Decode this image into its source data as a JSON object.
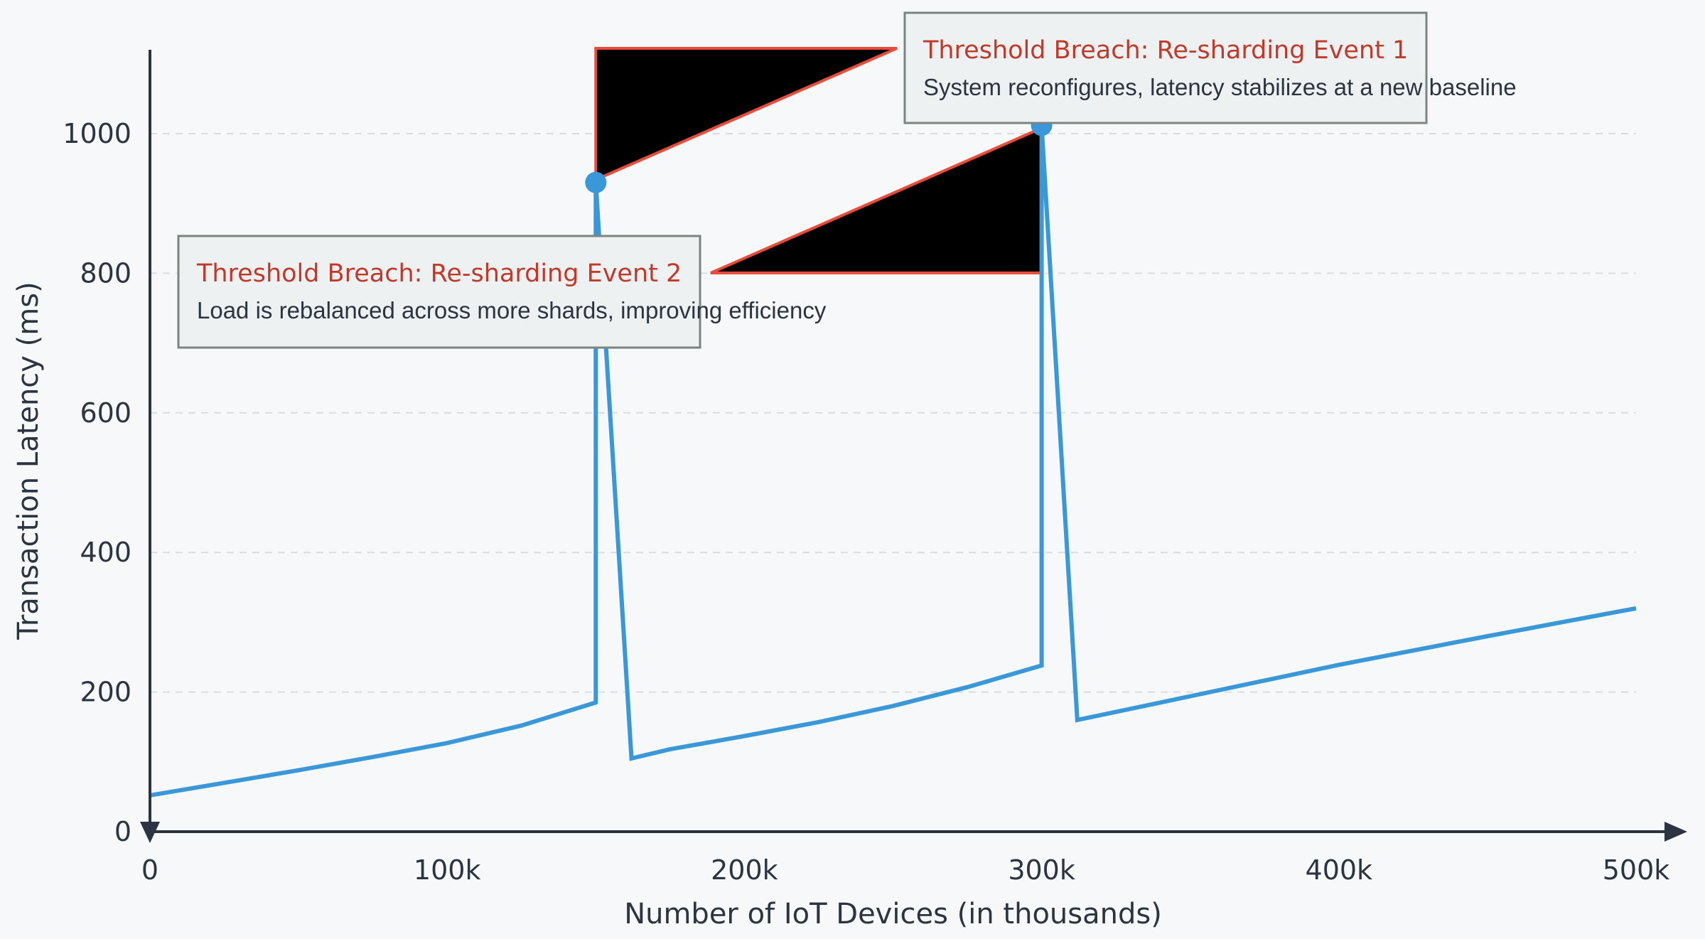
{
  "chart_data": {
    "type": "line",
    "xlabel": "Number of IoT Devices (in thousands)",
    "ylabel": "Transaction Latency (ms)",
    "xlim": [
      0,
      500
    ],
    "ylim": [
      0,
      1120
    ],
    "x_ticks": [
      0,
      100,
      200,
      300,
      400,
      500
    ],
    "x_tick_labels": [
      "0",
      "100k",
      "200k",
      "300k",
      "400k",
      "500k"
    ],
    "y_ticks": [
      0,
      200,
      400,
      600,
      800,
      1000
    ],
    "y_tick_labels": [
      "0",
      "200",
      "400",
      "600",
      "800",
      "1000"
    ],
    "grid": "horizontal dashed",
    "series": [
      {
        "color": "#3a97d8",
        "points": [
          [
            0,
            52
          ],
          [
            25,
            70
          ],
          [
            50,
            88
          ],
          [
            75,
            107
          ],
          [
            100,
            127
          ],
          [
            125,
            152
          ],
          [
            150,
            185
          ],
          [
            150,
            930
          ],
          [
            162,
            105
          ],
          [
            175,
            118
          ],
          [
            200,
            137
          ],
          [
            225,
            157
          ],
          [
            250,
            180
          ],
          [
            275,
            207
          ],
          [
            300,
            238
          ],
          [
            300,
            1012
          ],
          [
            312,
            160
          ],
          [
            350,
            194
          ],
          [
            400,
            239
          ],
          [
            450,
            280
          ],
          [
            500,
            320
          ]
        ]
      }
    ],
    "highlight_points": [
      [
        150,
        930
      ],
      [
        300,
        1012
      ]
    ],
    "annotations": [
      {
        "title": "Threshold Breach: Re-sharding Event 1",
        "subtitle": "System reconfigures, latency stabilizes at a new baseline",
        "title_color": "#c0392b",
        "point": [
          300,
          1012
        ]
      },
      {
        "title": "Threshold Breach: Re-sharding Event 2",
        "subtitle": "Load is rebalanced across more shards, improving efficiency",
        "title_color": "#c0392b",
        "point": [
          150,
          930
        ]
      }
    ],
    "colors": {
      "line": "#3a97d8",
      "axis": "#2b3440",
      "grid": "#d9dde1",
      "arrow_outline": "#e74c3c",
      "arrow_fill": "#000000",
      "box_fill": "#eef1f1",
      "box_border": "#7a8580"
    }
  }
}
